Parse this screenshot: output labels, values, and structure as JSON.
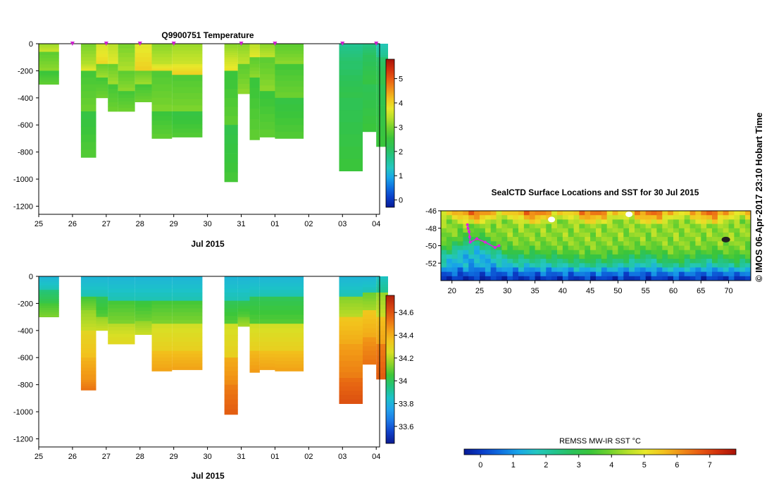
{
  "colors": {
    "temp_scale": [
      "#071a96",
      "#0a3ec8",
      "#0f6fe0",
      "#19a6e8",
      "#24c7c0",
      "#23c48e",
      "#2cc25a",
      "#3bc53a",
      "#6fd12e",
      "#b4e02a",
      "#e8e82a",
      "#f2c21e",
      "#f08e18",
      "#e85a12",
      "#d1300c",
      "#a81208"
    ],
    "salt_scale": [
      "#0b1a90",
      "#1040c8",
      "#1c78e6",
      "#22a2ec",
      "#1cc2c8",
      "#22c47e",
      "#3cc63a",
      "#8fd42a",
      "#d9df24",
      "#f2c41c",
      "#f29a16",
      "#e86812",
      "#d44010",
      "#b0200a"
    ]
  },
  "chart_data": [
    {
      "id": "temperature",
      "type": "heatmap",
      "title": "Q9900751  Temperature",
      "xlabel": "Jul 2015",
      "x_ticks": [
        "25",
        "26",
        "27",
        "28",
        "29",
        "30",
        "31",
        "01",
        "02",
        "03",
        "04"
      ],
      "y_ticks": [
        "0",
        "-200",
        "-400",
        "-600",
        "-800",
        "-1000",
        "-1200"
      ],
      "ylim": [
        -1260,
        0
      ],
      "colorbar": {
        "min": -0.3,
        "max": 5.8,
        "ticks": [
          "0",
          "1",
          "2",
          "3",
          "4",
          "5"
        ],
        "tick_values": [
          0,
          1,
          2,
          3,
          4,
          5
        ]
      },
      "profile_markers_day": [
        26,
        27,
        28,
        29,
        31,
        32,
        34,
        35
      ],
      "profiles": [
        {
          "x0": 25.0,
          "x1": 25.6,
          "depth": 300,
          "layers": [
            [
              0,
              60,
              3.4
            ],
            [
              60,
              200,
              3.0
            ],
            [
              200,
              300,
              2.7
            ]
          ]
        },
        {
          "x0": 26.25,
          "x1": 26.7,
          "depth": 840,
          "layers": [
            [
              0,
              150,
              3.2
            ],
            [
              150,
              200,
              3.6
            ],
            [
              200,
              500,
              2.8
            ],
            [
              500,
              840,
              2.6
            ]
          ]
        },
        {
          "x0": 26.7,
          "x1": 27.05,
          "depth": 400,
          "layers": [
            [
              0,
              150,
              3.8
            ],
            [
              150,
              250,
              3.1
            ],
            [
              250,
              400,
              2.8
            ]
          ]
        },
        {
          "x0": 27.05,
          "x1": 27.35,
          "depth": 500,
          "layers": [
            [
              0,
              150,
              3.6
            ],
            [
              150,
              300,
              3.1
            ],
            [
              300,
              500,
              2.8
            ]
          ]
        },
        {
          "x0": 27.35,
          "x1": 27.85,
          "depth": 500,
          "layers": [
            [
              0,
              200,
              3.2
            ],
            [
              200,
              350,
              3.0
            ],
            [
              350,
              500,
              2.8
            ]
          ]
        },
        {
          "x0": 27.85,
          "x1": 28.35,
          "depth": 430,
          "layers": [
            [
              0,
              200,
              3.9
            ],
            [
              200,
              300,
              3.1
            ],
            [
              300,
              430,
              2.8
            ]
          ]
        },
        {
          "x0": 28.35,
          "x1": 28.95,
          "depth": 700,
          "layers": [
            [
              0,
              150,
              3.3
            ],
            [
              150,
              200,
              3.8
            ],
            [
              200,
              500,
              2.9
            ],
            [
              500,
              700,
              2.7
            ]
          ]
        },
        {
          "x0": 28.95,
          "x1": 29.85,
          "depth": 690,
          "layers": [
            [
              0,
              150,
              3.4
            ],
            [
              150,
              230,
              3.9
            ],
            [
              230,
              500,
              2.9
            ],
            [
              500,
              690,
              2.6
            ]
          ]
        },
        {
          "x0": 30.5,
          "x1": 30.9,
          "depth": 1020,
          "layers": [
            [
              0,
              100,
              3.3
            ],
            [
              100,
              200,
              3.7
            ],
            [
              200,
              600,
              2.7
            ],
            [
              600,
              1020,
              2.5
            ]
          ]
        },
        {
          "x0": 30.9,
          "x1": 31.25,
          "depth": 370,
          "layers": [
            [
              0,
              150,
              3.3
            ],
            [
              150,
              370,
              3.0
            ]
          ]
        },
        {
          "x0": 31.25,
          "x1": 31.55,
          "depth": 710,
          "layers": [
            [
              0,
              100,
              3.6
            ],
            [
              100,
              250,
              3.0
            ],
            [
              250,
              710,
              2.7
            ]
          ]
        },
        {
          "x0": 31.55,
          "x1": 32.0,
          "depth": 690,
          "layers": [
            [
              0,
              100,
              3.3
            ],
            [
              100,
              350,
              3.0
            ],
            [
              350,
              690,
              2.7
            ]
          ]
        },
        {
          "x0": 32.0,
          "x1": 32.85,
          "depth": 700,
          "layers": [
            [
              0,
              150,
              3.0
            ],
            [
              150,
              400,
              2.8
            ],
            [
              400,
              700,
              2.6
            ]
          ]
        },
        {
          "x0": 33.9,
          "x1": 34.6,
          "depth": 940,
          "layers": [
            [
              0,
              150,
              1.9
            ],
            [
              150,
              400,
              2.2
            ],
            [
              400,
              940,
              2.4
            ]
          ]
        },
        {
          "x0": 34.6,
          "x1": 35.0,
          "depth": 650,
          "layers": [
            [
              0,
              100,
              2.0
            ],
            [
              100,
              300,
              2.3
            ],
            [
              300,
              650,
              2.4
            ]
          ]
        },
        {
          "x0": 35.0,
          "x1": 35.35,
          "depth": 760,
          "layers": [
            [
              0,
              100,
              1.6
            ],
            [
              100,
              300,
              2.2
            ],
            [
              300,
              760,
              2.4
            ]
          ]
        }
      ]
    },
    {
      "id": "salinity",
      "type": "heatmap",
      "title": "",
      "xlabel": "Jul 2015",
      "x_ticks": [
        "25",
        "26",
        "27",
        "28",
        "29",
        "30",
        "31",
        "01",
        "02",
        "03",
        "04"
      ],
      "y_ticks": [
        "0",
        "-200",
        "-400",
        "-600",
        "-800",
        "-1000",
        "-1200"
      ],
      "ylim": [
        -1260,
        0
      ],
      "colorbar": {
        "min": 33.45,
        "max": 34.75,
        "ticks": [
          "33.6",
          "33.8",
          "34",
          "34.2",
          "34.4",
          "34.6"
        ],
        "tick_values": [
          33.6,
          33.8,
          34.0,
          34.2,
          34.4,
          34.6
        ]
      },
      "profiles": [
        {
          "x0": 25.0,
          "x1": 25.6,
          "depth": 300,
          "layers": [
            [
              0,
              100,
              33.85
            ],
            [
              100,
              200,
              34.0
            ],
            [
              200,
              300,
              34.1
            ]
          ]
        },
        {
          "x0": 26.25,
          "x1": 26.7,
          "depth": 840,
          "layers": [
            [
              0,
              150,
              33.85
            ],
            [
              150,
              250,
              34.1
            ],
            [
              250,
              400,
              34.2
            ],
            [
              400,
              600,
              34.33
            ],
            [
              600,
              750,
              34.43
            ],
            [
              750,
              840,
              34.5
            ]
          ]
        },
        {
          "x0": 26.7,
          "x1": 27.05,
          "depth": 400,
          "layers": [
            [
              0,
              150,
              33.85
            ],
            [
              150,
              300,
              34.05
            ],
            [
              300,
              400,
              34.2
            ]
          ]
        },
        {
          "x0": 27.05,
          "x1": 27.85,
          "depth": 500,
          "layers": [
            [
              0,
              180,
              33.85
            ],
            [
              180,
              350,
              34.1
            ],
            [
              350,
              500,
              34.25
            ]
          ]
        },
        {
          "x0": 27.85,
          "x1": 28.35,
          "depth": 430,
          "layers": [
            [
              0,
              180,
              33.85
            ],
            [
              180,
              330,
              34.08
            ],
            [
              330,
              430,
              34.2
            ]
          ]
        },
        {
          "x0": 28.35,
          "x1": 28.95,
          "depth": 700,
          "layers": [
            [
              0,
              180,
              33.85
            ],
            [
              180,
              350,
              34.1
            ],
            [
              350,
              550,
              34.28
            ],
            [
              550,
              700,
              34.4
            ]
          ]
        },
        {
          "x0": 28.95,
          "x1": 29.85,
          "depth": 690,
          "layers": [
            [
              0,
              180,
              33.85
            ],
            [
              180,
              350,
              34.1
            ],
            [
              350,
              550,
              34.28
            ],
            [
              550,
              690,
              34.4
            ]
          ]
        },
        {
          "x0": 30.5,
          "x1": 30.9,
          "depth": 1020,
          "layers": [
            [
              0,
              180,
              33.85
            ],
            [
              180,
              350,
              34.05
            ],
            [
              350,
              600,
              34.28
            ],
            [
              600,
              800,
              34.45
            ],
            [
              800,
              1020,
              34.55
            ]
          ]
        },
        {
          "x0": 30.9,
          "x1": 31.25,
          "depth": 370,
          "layers": [
            [
              0,
              180,
              33.85
            ],
            [
              180,
              300,
              34.05
            ],
            [
              300,
              370,
              34.15
            ]
          ]
        },
        {
          "x0": 31.25,
          "x1": 31.55,
          "depth": 710,
          "layers": [
            [
              0,
              150,
              33.85
            ],
            [
              150,
              350,
              34.05
            ],
            [
              350,
              550,
              34.28
            ],
            [
              550,
              710,
              34.42
            ]
          ]
        },
        {
          "x0": 31.55,
          "x1": 32.0,
          "depth": 690,
          "layers": [
            [
              0,
              150,
              33.85
            ],
            [
              150,
              350,
              34.05
            ],
            [
              350,
              550,
              34.28
            ],
            [
              550,
              690,
              34.4
            ]
          ]
        },
        {
          "x0": 32.0,
          "x1": 32.85,
          "depth": 700,
          "layers": [
            [
              0,
              150,
              33.85
            ],
            [
              150,
              350,
              34.05
            ],
            [
              350,
              550,
              34.28
            ],
            [
              550,
              700,
              34.4
            ]
          ]
        },
        {
          "x0": 33.9,
          "x1": 34.6,
          "depth": 940,
          "layers": [
            [
              0,
              150,
              33.85
            ],
            [
              150,
              300,
              34.18
            ],
            [
              300,
              500,
              34.38
            ],
            [
              500,
              750,
              34.48
            ],
            [
              750,
              940,
              34.58
            ]
          ]
        },
        {
          "x0": 34.6,
          "x1": 35.0,
          "depth": 650,
          "layers": [
            [
              0,
              120,
              33.85
            ],
            [
              120,
              250,
              34.15
            ],
            [
              250,
              450,
              34.38
            ],
            [
              450,
              650,
              34.5
            ]
          ]
        },
        {
          "x0": 35.0,
          "x1": 35.35,
          "depth": 760,
          "layers": [
            [
              0,
              120,
              33.9
            ],
            [
              120,
              300,
              34.2
            ],
            [
              300,
              500,
              34.4
            ],
            [
              500,
              760,
              34.55
            ]
          ]
        }
      ]
    },
    {
      "id": "sst_map",
      "type": "heatmap",
      "title": "SealCTD Surface Locations and SST for 30 Jul 2015",
      "x_ticks": [
        "20",
        "25",
        "30",
        "35",
        "40",
        "45",
        "50",
        "55",
        "60",
        "65",
        "70"
      ],
      "x_tick_values": [
        20,
        25,
        30,
        35,
        40,
        45,
        50,
        55,
        60,
        65,
        70
      ],
      "y_ticks": [
        "-46",
        "-48",
        "-50",
        "-52"
      ],
      "y_tick_values": [
        -46,
        -48,
        -50,
        -52
      ],
      "xlim": [
        18,
        74
      ],
      "ylim": [
        -54,
        -46
      ],
      "colorbar": {
        "label": "REMSS MW-IR SST °C",
        "min": -0.5,
        "max": 7.8,
        "ticks": [
          "0",
          "1",
          "2",
          "3",
          "4",
          "5",
          "6",
          "7"
        ],
        "tick_values": [
          0,
          1,
          2,
          3,
          4,
          5,
          6,
          7
        ]
      },
      "track_points": [
        [
          22.8,
          -47.6
        ],
        [
          22.9,
          -48.0
        ],
        [
          23.1,
          -48.4
        ],
        [
          23.2,
          -49.0
        ],
        [
          23.3,
          -49.6
        ],
        [
          24.5,
          -49.2
        ],
        [
          26.0,
          -49.6
        ],
        [
          27.8,
          -50.2
        ],
        [
          28.5,
          -50.0
        ]
      ]
    }
  ],
  "footer": {
    "credit": "© IMOS 06-Apr-2017 23:10 Hobart Time"
  }
}
